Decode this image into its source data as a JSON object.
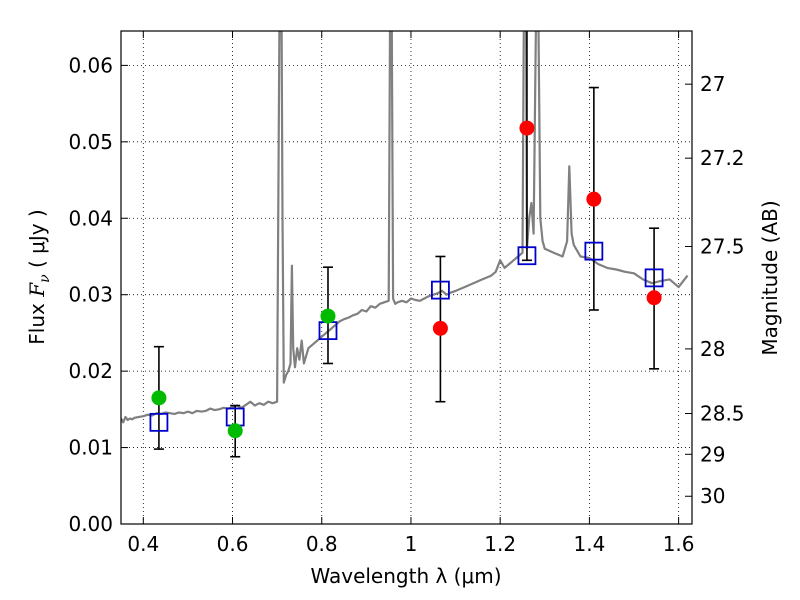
{
  "chart_data": {
    "type": "scatter",
    "title": "",
    "xlabel": "Wavelength  λ (μm)",
    "ylabel": "Flux  Fν  ( μJy )",
    "ylabel_parts": {
      "prefix": "Flux  ",
      "symbol": "F",
      "subscript": "ν",
      "unit": "  ( μJy )"
    },
    "y2label": "Magnitude (AB)",
    "xlim": [
      0.35,
      1.63
    ],
    "ylim": [
      0.0,
      0.0645
    ],
    "grid": true,
    "x_ticks": [
      {
        "value": 0.4,
        "label": "0.4"
      },
      {
        "value": 0.6,
        "label": "0.6"
      },
      {
        "value": 0.8,
        "label": "0.8"
      },
      {
        "value": 1.0,
        "label": "1"
      },
      {
        "value": 1.2,
        "label": "1.2"
      },
      {
        "value": 1.4,
        "label": "1.4"
      },
      {
        "value": 1.6,
        "label": "1.6"
      }
    ],
    "y_ticks": [
      {
        "value": 0.0,
        "label": "0.00"
      },
      {
        "value": 0.01,
        "label": "0.01"
      },
      {
        "value": 0.02,
        "label": "0.02"
      },
      {
        "value": 0.03,
        "label": "0.03"
      },
      {
        "value": 0.04,
        "label": "0.04"
      },
      {
        "value": 0.05,
        "label": "0.05"
      },
      {
        "value": 0.06,
        "label": "0.06"
      }
    ],
    "y2_ticks": [
      {
        "mag": 27.0,
        "label": "27"
      },
      {
        "mag": 27.2,
        "label": "27.2"
      },
      {
        "mag": 27.5,
        "label": "27.5"
      },
      {
        "mag": 28.0,
        "label": "28"
      },
      {
        "mag": 28.5,
        "label": "28.5"
      },
      {
        "mag": 29.0,
        "label": "29"
      },
      {
        "mag": 30.0,
        "label": "30"
      }
    ],
    "series": [
      {
        "kind": "model_spectrum",
        "color": "#808080",
        "x": [
          0.35,
          0.355,
          0.36,
          0.365,
          0.37,
          0.375,
          0.38,
          0.39,
          0.4,
          0.41,
          0.42,
          0.43,
          0.44,
          0.45,
          0.46,
          0.47,
          0.48,
          0.49,
          0.5,
          0.51,
          0.52,
          0.53,
          0.54,
          0.55,
          0.56,
          0.57,
          0.58,
          0.59,
          0.6,
          0.61,
          0.62,
          0.63,
          0.64,
          0.65,
          0.66,
          0.67,
          0.68,
          0.69,
          0.7,
          0.705,
          0.708,
          0.71,
          0.712,
          0.715,
          0.72,
          0.725,
          0.73,
          0.733,
          0.736,
          0.74,
          0.745,
          0.75,
          0.755,
          0.76,
          0.77,
          0.78,
          0.79,
          0.8,
          0.81,
          0.82,
          0.83,
          0.84,
          0.85,
          0.86,
          0.87,
          0.88,
          0.89,
          0.9,
          0.91,
          0.92,
          0.93,
          0.94,
          0.95,
          0.953,
          0.955,
          0.957,
          0.96,
          0.963,
          0.965,
          0.97,
          0.98,
          0.99,
          1.0,
          1.01,
          1.02,
          1.03,
          1.04,
          1.05,
          1.06,
          1.07,
          1.08,
          1.09,
          1.1,
          1.12,
          1.14,
          1.16,
          1.18,
          1.19,
          1.2,
          1.21,
          1.22,
          1.23,
          1.24,
          1.25,
          1.253,
          1.255,
          1.258,
          1.26,
          1.265,
          1.27,
          1.275,
          1.28,
          1.283,
          1.286,
          1.29,
          1.295,
          1.3,
          1.32,
          1.34,
          1.35,
          1.355,
          1.36,
          1.365,
          1.37,
          1.38,
          1.4,
          1.42,
          1.44,
          1.46,
          1.48,
          1.5,
          1.52,
          1.54,
          1.56,
          1.58,
          1.6,
          1.62
        ],
        "y": [
          0.0138,
          0.0133,
          0.014,
          0.0136,
          0.0138,
          0.0137,
          0.0139,
          0.014,
          0.0141,
          0.0143,
          0.0142,
          0.0145,
          0.0144,
          0.0146,
          0.0145,
          0.0144,
          0.0146,
          0.0145,
          0.0147,
          0.0145,
          0.0148,
          0.0147,
          0.0148,
          0.0151,
          0.0149,
          0.015,
          0.0152,
          0.0151,
          0.0153,
          0.0155,
          0.0152,
          0.0156,
          0.016,
          0.0155,
          0.0158,
          0.0156,
          0.016,
          0.0158,
          0.016,
          0.065,
          0.065,
          0.065,
          0.04,
          0.0185,
          0.0195,
          0.02,
          0.021,
          0.0338,
          0.023,
          0.0205,
          0.023,
          0.0215,
          0.024,
          0.021,
          0.023,
          0.0235,
          0.024,
          0.0245,
          0.025,
          0.0255,
          0.026,
          0.0265,
          0.0268,
          0.027,
          0.0273,
          0.0275,
          0.028,
          0.0278,
          0.0285,
          0.0283,
          0.0288,
          0.029,
          0.0292,
          0.065,
          0.065,
          0.065,
          0.0295,
          0.029,
          0.0288,
          0.029,
          0.0292,
          0.029,
          0.0295,
          0.0293,
          0.0292,
          0.0295,
          0.0298,
          0.03,
          0.0302,
          0.0305,
          0.03,
          0.0303,
          0.0305,
          0.031,
          0.0315,
          0.032,
          0.0325,
          0.033,
          0.0345,
          0.0335,
          0.034,
          0.0345,
          0.035,
          0.0355,
          0.065,
          0.065,
          0.065,
          0.036,
          0.04,
          0.042,
          0.038,
          0.065,
          0.065,
          0.065,
          0.04,
          0.037,
          0.036,
          0.0355,
          0.035,
          0.037,
          0.0468,
          0.038,
          0.0365,
          0.036,
          0.035,
          0.0348,
          0.034,
          0.0335,
          0.0333,
          0.033,
          0.0328,
          0.032,
          0.0315,
          0.0318,
          0.032,
          0.031,
          0.0325
        ]
      },
      {
        "kind": "model_photometry",
        "marker": "open-square",
        "color": "#0000cc",
        "points": [
          {
            "x": 0.435,
            "y": 0.0133
          },
          {
            "x": 0.606,
            "y": 0.014
          },
          {
            "x": 0.814,
            "y": 0.0253
          },
          {
            "x": 1.066,
            "y": 0.0306
          },
          {
            "x": 1.26,
            "y": 0.0351
          },
          {
            "x": 1.41,
            "y": 0.0357
          },
          {
            "x": 1.545,
            "y": 0.0322
          }
        ]
      },
      {
        "kind": "observed_photometry",
        "marker": "filled-circle",
        "points": [
          {
            "x": 0.435,
            "y": 0.0165,
            "yerr_lo": 0.0098,
            "yerr_hi": 0.0232,
            "color": "#00bb00"
          },
          {
            "x": 0.606,
            "y": 0.0122,
            "yerr_lo": 0.0088,
            "yerr_hi": 0.0155,
            "color": "#00bb00"
          },
          {
            "x": 0.814,
            "y": 0.0272,
            "yerr_lo": 0.021,
            "yerr_hi": 0.0336,
            "color": "#00bb00"
          },
          {
            "x": 1.066,
            "y": 0.0256,
            "yerr_lo": 0.016,
            "yerr_hi": 0.035,
            "color": "#ff0000"
          },
          {
            "x": 1.26,
            "y": 0.0518,
            "yerr_lo": 0.0345,
            "yerr_hi": 0.065,
            "color": "#ff0000"
          },
          {
            "x": 1.41,
            "y": 0.0425,
            "yerr_lo": 0.028,
            "yerr_hi": 0.0571,
            "color": "#ff0000"
          },
          {
            "x": 1.545,
            "y": 0.0296,
            "yerr_lo": 0.0203,
            "yerr_hi": 0.0387,
            "color": "#ff0000"
          }
        ]
      }
    ]
  }
}
